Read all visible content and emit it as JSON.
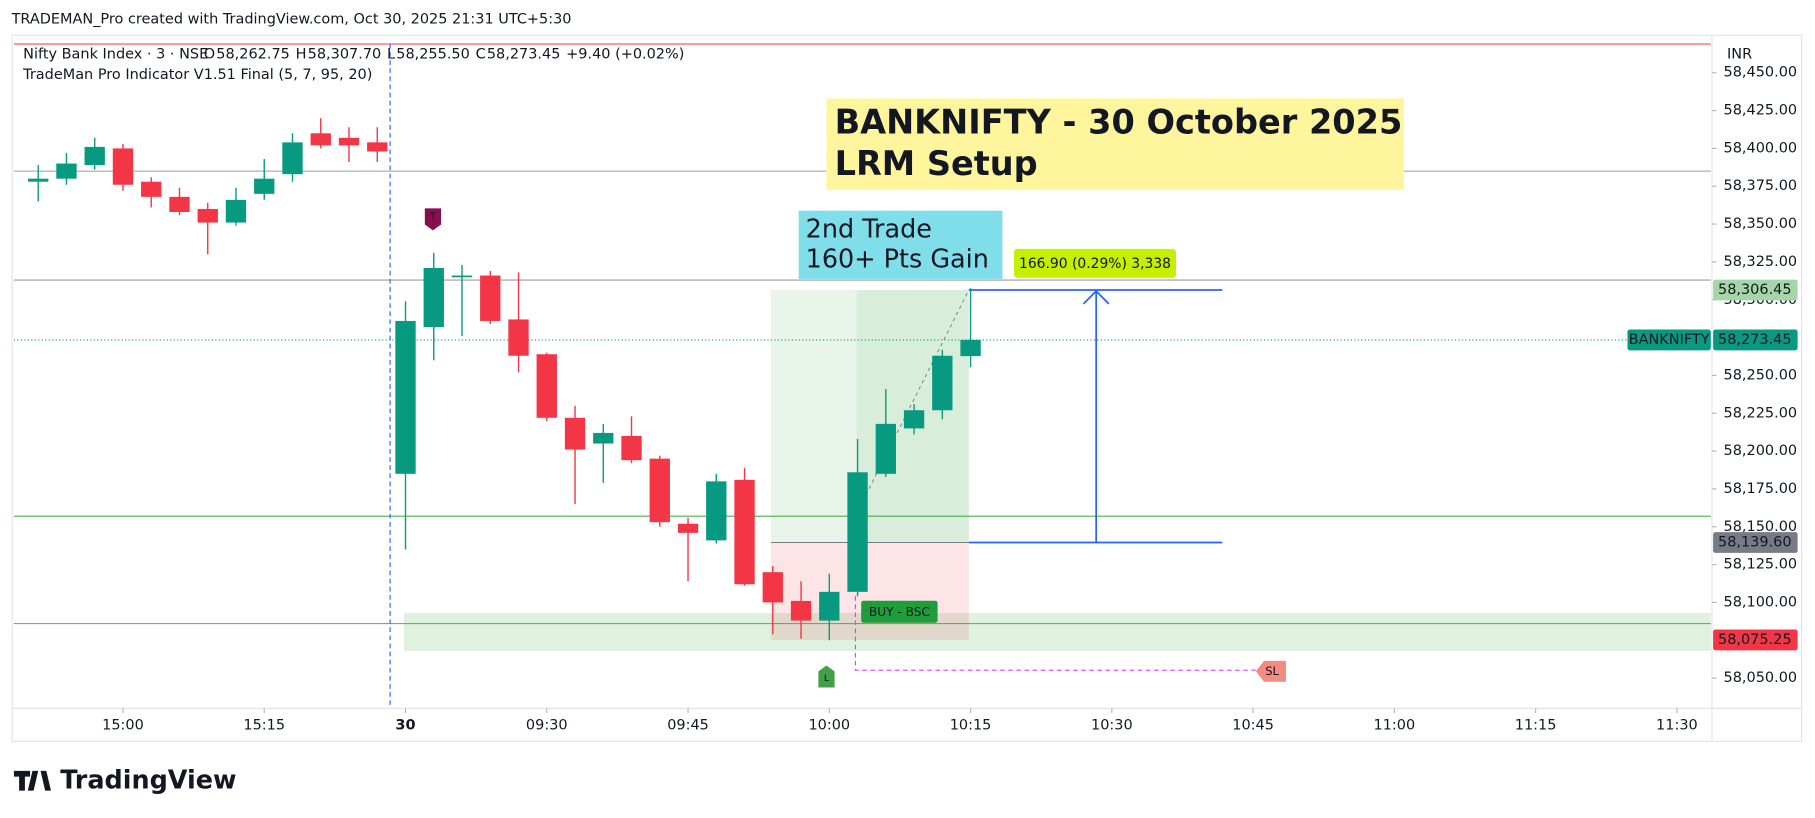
{
  "header": {
    "attribution": "TRADEMAN_Pro created with TradingView.com, Oct 30, 2025 21:31 UTC+5:30",
    "logo": "TradingView"
  },
  "chart_data": {
    "type": "candlestick",
    "symbol": "Nifty Bank Index · 3 · NSE",
    "legend_ohlc": [
      {
        "key": "O",
        "value": "58,262.75"
      },
      {
        "key": "H",
        "value": "58,307.70"
      },
      {
        "key": "L",
        "value": "58,255.50"
      },
      {
        "key": "C",
        "value": "58,273.45"
      }
    ],
    "change": "+9.40 (+0.02%)",
    "indicator": "TradeMan Pro Indicator V1.51 Final (5, 7, 95, 20)",
    "currency": "INR",
    "up_color": "#089981",
    "down_color": "#f23645",
    "candles": [
      [
        58378,
        58389,
        58365,
        58380
      ],
      [
        58380,
        58397,
        58376,
        58390
      ],
      [
        58389,
        58407,
        58386,
        58401
      ],
      [
        58400,
        58403,
        58372,
        58376
      ],
      [
        58378,
        58381,
        58361,
        58368
      ],
      [
        58368,
        58374,
        58356,
        58358
      ],
      [
        58360,
        58364,
        58330,
        58351
      ],
      [
        58351,
        58374,
        58349,
        58366
      ],
      [
        58370,
        58393,
        58366,
        58380
      ],
      [
        58383,
        58410,
        58378,
        58404
      ],
      [
        58410,
        58420,
        58400,
        58402
      ],
      [
        58407,
        58414,
        58391,
        58402
      ],
      [
        58404,
        58414,
        58391,
        58398
      ],
      [
        58185,
        58299,
        58135,
        58286
      ],
      [
        58282,
        58331,
        58260,
        58321
      ],
      [
        58315,
        58323,
        58276,
        58316
      ],
      [
        58316,
        58319,
        58284,
        58286
      ],
      [
        58287,
        58318,
        58252,
        58263
      ],
      [
        58264,
        58265,
        58220,
        58222
      ],
      [
        58222,
        58230,
        58165,
        58201
      ],
      [
        58205,
        58218,
        58179,
        58212
      ],
      [
        58210,
        58223,
        58192,
        58194
      ],
      [
        58195,
        58197,
        58150,
        58153
      ],
      [
        58152,
        58156,
        58114,
        58146
      ],
      [
        58141,
        58185,
        58139,
        58180
      ],
      [
        58181,
        58189,
        58111,
        58112
      ],
      [
        58120,
        58124,
        58079,
        58100
      ],
      [
        58101,
        58114,
        58076,
        58088
      ],
      [
        58088,
        58119,
        58075,
        58107
      ],
      [
        58107,
        58208,
        58104,
        58186
      ],
      [
        58185,
        58241,
        58183,
        58218
      ],
      [
        58215,
        58231,
        58211,
        58227
      ],
      [
        58227,
        58267,
        58221,
        58263
      ],
      [
        58262.75,
        58307.7,
        58255.5,
        58273.45
      ]
    ],
    "xlim": [
      -0.86,
      59.2
    ],
    "xticks": [
      {
        "value": 3,
        "label": "15:00"
      },
      {
        "value": 8,
        "label": "15:15"
      },
      {
        "value": 13,
        "label": "30"
      },
      {
        "value": 18,
        "label": "09:30"
      },
      {
        "value": 23,
        "label": "09:45"
      },
      {
        "value": 28,
        "label": "10:00"
      },
      {
        "value": 33,
        "label": "10:15"
      },
      {
        "value": 38,
        "label": "10:30"
      },
      {
        "value": 43,
        "label": "10:45"
      },
      {
        "value": 48,
        "label": "11:00"
      },
      {
        "value": 53,
        "label": "11:15"
      },
      {
        "value": 58,
        "label": "11:30"
      }
    ],
    "ylim": [
      58030,
      58469
    ],
    "yticks": [
      {
        "value": 58050,
        "label": "58,050.00"
      },
      {
        "value": 58100,
        "label": "58,100.00"
      },
      {
        "value": 58125,
        "label": "58,125.00"
      },
      {
        "value": 58150,
        "label": "58,150.00"
      },
      {
        "value": 58175,
        "label": "58,175.00"
      },
      {
        "value": 58200,
        "label": "58,200.00"
      },
      {
        "value": 58225,
        "label": "58,225.00"
      },
      {
        "value": 58250,
        "label": "58,250.00"
      },
      {
        "value": 58300,
        "label": "58,300.00"
      },
      {
        "value": 58325,
        "label": "58,325.00"
      },
      {
        "value": 58350,
        "label": "58,350.00"
      },
      {
        "value": 58375,
        "label": "58,375.00"
      },
      {
        "value": 58400,
        "label": "58,400.00"
      },
      {
        "value": 58425,
        "label": "58,425.00"
      },
      {
        "value": 58450,
        "label": "58,450.00"
      }
    ],
    "levels": [
      {
        "value": 58385,
        "color": "#9e9e9e"
      },
      {
        "value": 58313,
        "color": "#9e9e9e"
      },
      {
        "value": 58157,
        "color": "#4caf50"
      },
      {
        "value": 58086,
        "color": "#4caf50"
      }
    ],
    "zone": [
      58068,
      58093
    ],
    "price_tags": [
      {
        "value": 58306.45,
        "label": "58,306.45",
        "color": "#a5d6a7",
        "text": "#1b5e20"
      },
      {
        "value": 58273.45,
        "label": "58,273.45",
        "color": "#089981",
        "text": "#ffffff"
      },
      {
        "value": 58139.6,
        "label": "58,139.60",
        "color": "#787b86",
        "text": "#ffffff"
      },
      {
        "value": 58075.25,
        "label": "58,075.25",
        "color": "#f23645",
        "text": "#ffffff"
      }
    ],
    "last_tag": "BANKNIFTY",
    "annotations": {
      "title": [
        "BANKNIFTY - 30 October 2025",
        "LRM Setup"
      ],
      "trade": [
        "2nd Trade",
        "160+ Pts Gain"
      ],
      "measure": "166.90 (0.29%) 3,338",
      "buy": "BUY -  BSC",
      "sl": "SL",
      "t": "T",
      "l": "L"
    }
  }
}
